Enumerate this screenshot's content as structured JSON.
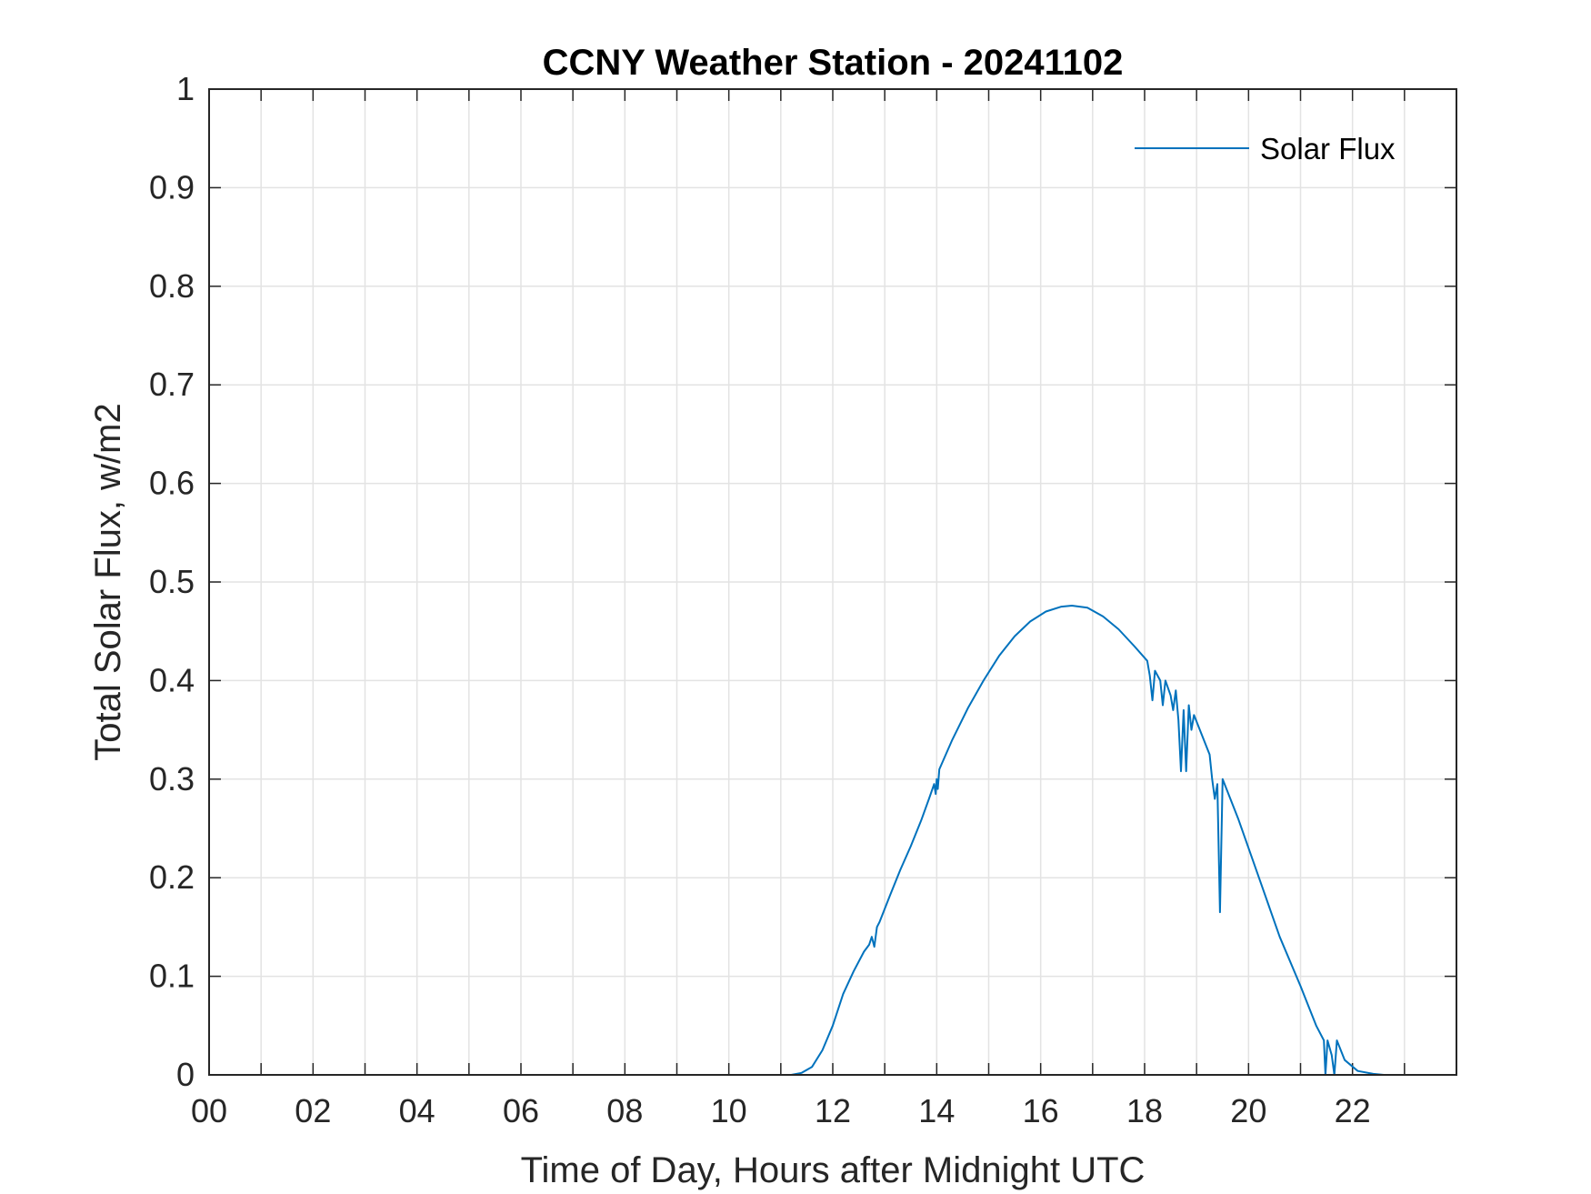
{
  "chart_data": {
    "type": "line",
    "title": "CCNY Weather Station - 20241102",
    "xlabel": "Time of Day, Hours after Midnight UTC",
    "ylabel": "Total Solar Flux, w/m2",
    "xlim": [
      0,
      24
    ],
    "ylim": [
      0,
      1
    ],
    "xticks": [
      0,
      2,
      4,
      6,
      8,
      10,
      12,
      14,
      16,
      18,
      20,
      22
    ],
    "xtick_labels": [
      "00",
      "02",
      "04",
      "06",
      "08",
      "10",
      "12",
      "14",
      "16",
      "18",
      "20",
      "22"
    ],
    "yticks": [
      0,
      0.1,
      0.2,
      0.3,
      0.4,
      0.5,
      0.6,
      0.7,
      0.8,
      0.9,
      1
    ],
    "ytick_labels": [
      "0",
      "0.1",
      "0.2",
      "0.3",
      "0.4",
      "0.5",
      "0.6",
      "0.7",
      "0.8",
      "0.9",
      "1"
    ],
    "grid": true,
    "legend": {
      "position": "top-right",
      "entries": [
        "Solar Flux"
      ]
    },
    "series": [
      {
        "name": "Solar Flux",
        "color": "#0072BD",
        "points": [
          [
            0,
            0
          ],
          [
            11.2,
            0
          ],
          [
            11.4,
            0.002
          ],
          [
            11.6,
            0.008
          ],
          [
            11.8,
            0.025
          ],
          [
            12.0,
            0.05
          ],
          [
            12.2,
            0.082
          ],
          [
            12.4,
            0.105
          ],
          [
            12.6,
            0.125
          ],
          [
            12.7,
            0.132
          ],
          [
            12.75,
            0.14
          ],
          [
            12.8,
            0.13
          ],
          [
            12.85,
            0.15
          ],
          [
            12.9,
            0.155
          ],
          [
            13.1,
            0.182
          ],
          [
            13.3,
            0.208
          ],
          [
            13.5,
            0.232
          ],
          [
            13.7,
            0.258
          ],
          [
            13.85,
            0.28
          ],
          [
            13.95,
            0.295
          ],
          [
            13.98,
            0.285
          ],
          [
            14.0,
            0.3
          ],
          [
            14.02,
            0.29
          ],
          [
            14.05,
            0.31
          ],
          [
            14.3,
            0.34
          ],
          [
            14.6,
            0.372
          ],
          [
            14.9,
            0.4
          ],
          [
            15.2,
            0.425
          ],
          [
            15.5,
            0.445
          ],
          [
            15.8,
            0.46
          ],
          [
            16.1,
            0.47
          ],
          [
            16.4,
            0.475
          ],
          [
            16.6,
            0.476
          ],
          [
            16.9,
            0.474
          ],
          [
            17.2,
            0.465
          ],
          [
            17.5,
            0.452
          ],
          [
            17.8,
            0.435
          ],
          [
            18.05,
            0.42
          ],
          [
            18.1,
            0.405
          ],
          [
            18.15,
            0.38
          ],
          [
            18.2,
            0.41
          ],
          [
            18.3,
            0.4
          ],
          [
            18.35,
            0.375
          ],
          [
            18.4,
            0.4
          ],
          [
            18.5,
            0.385
          ],
          [
            18.55,
            0.37
          ],
          [
            18.6,
            0.39
          ],
          [
            18.65,
            0.36
          ],
          [
            18.7,
            0.308
          ],
          [
            18.75,
            0.37
          ],
          [
            18.8,
            0.308
          ],
          [
            18.85,
            0.375
          ],
          [
            18.9,
            0.35
          ],
          [
            18.95,
            0.365
          ],
          [
            19.1,
            0.345
          ],
          [
            19.25,
            0.325
          ],
          [
            19.3,
            0.3
          ],
          [
            19.35,
            0.28
          ],
          [
            19.4,
            0.295
          ],
          [
            19.45,
            0.165
          ],
          [
            19.5,
            0.3
          ],
          [
            19.8,
            0.26
          ],
          [
            20.2,
            0.2
          ],
          [
            20.6,
            0.14
          ],
          [
            21.0,
            0.09
          ],
          [
            21.3,
            0.05
          ],
          [
            21.45,
            0.035
          ],
          [
            21.48,
            0
          ],
          [
            21.52,
            0.035
          ],
          [
            21.6,
            0.02
          ],
          [
            21.65,
            0
          ],
          [
            21.7,
            0.035
          ],
          [
            21.85,
            0.015
          ],
          [
            22.1,
            0.004
          ],
          [
            22.4,
            0.001
          ],
          [
            22.6,
            0
          ],
          [
            24,
            0
          ]
        ]
      }
    ]
  }
}
